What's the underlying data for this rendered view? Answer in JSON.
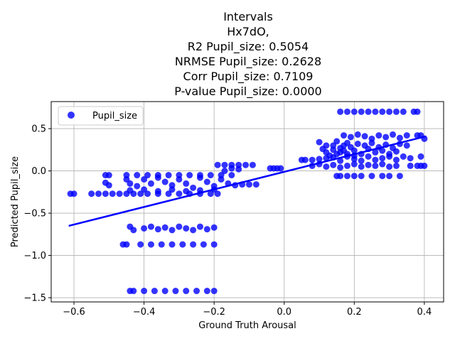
{
  "chart_data": {
    "type": "scatter",
    "title_lines": [
      "Intervals",
      "Hx7dO,",
      "R2 Pupil_size: 0.5054",
      "NRMSE Pupil_size: 0.2628",
      "Corr Pupil_size: 0.7109",
      "P-value Pupil_size: 0.0000"
    ],
    "xlabel": "Ground Truth Arousal",
    "ylabel": "Predicted Pupil_size",
    "xlim": [
      -0.665,
      0.455
    ],
    "ylim": [
      -1.55,
      0.82
    ],
    "xticks": [
      -0.6,
      -0.4,
      -0.2,
      0.0,
      0.2,
      0.4
    ],
    "xtick_labels": [
      "−0.6",
      "−0.4",
      "−0.2",
      "0.0",
      "0.2",
      "0.4"
    ],
    "yticks": [
      -1.5,
      -1.0,
      -0.5,
      0.0,
      0.5
    ],
    "ytick_labels": [
      "−1.5",
      "−1.0",
      "−0.5",
      "0.0",
      "0.5"
    ],
    "grid": true,
    "legend": {
      "position": "top-left",
      "entries": [
        "Pupil_size"
      ]
    },
    "color": "#0000ff",
    "series": [
      {
        "name": "Pupil_size",
        "points": [
          [
            -0.61,
            -0.27
          ],
          [
            -0.6,
            -0.27
          ],
          [
            -0.55,
            -0.27
          ],
          [
            -0.53,
            -0.27
          ],
          [
            -0.51,
            -0.27
          ],
          [
            -0.49,
            -0.27
          ],
          [
            -0.47,
            -0.27
          ],
          [
            -0.45,
            -0.27
          ],
          [
            -0.43,
            -0.27
          ],
          [
            -0.41,
            -0.27
          ],
          [
            -0.39,
            -0.27
          ],
          [
            -0.36,
            -0.27
          ],
          [
            -0.33,
            -0.27
          ],
          [
            -0.3,
            -0.27
          ],
          [
            -0.27,
            -0.27
          ],
          [
            -0.24,
            -0.27
          ],
          [
            -0.21,
            -0.27
          ],
          [
            -0.19,
            -0.27
          ],
          [
            -0.51,
            -0.05
          ],
          [
            -0.5,
            -0.05
          ],
          [
            -0.45,
            -0.05
          ],
          [
            -0.42,
            -0.05
          ],
          [
            -0.39,
            -0.05
          ],
          [
            -0.36,
            -0.05
          ],
          [
            -0.33,
            -0.05
          ],
          [
            -0.3,
            -0.05
          ],
          [
            -0.27,
            -0.05
          ],
          [
            -0.24,
            -0.05
          ],
          [
            -0.21,
            -0.05
          ],
          [
            -0.18,
            -0.05
          ],
          [
            -0.15,
            -0.05
          ],
          [
            -0.51,
            -0.14
          ],
          [
            -0.5,
            -0.17
          ],
          [
            -0.45,
            -0.1
          ],
          [
            -0.44,
            -0.15
          ],
          [
            -0.42,
            -0.18
          ],
          [
            -0.4,
            -0.1
          ],
          [
            -0.38,
            -0.15
          ],
          [
            -0.36,
            -0.08
          ],
          [
            -0.34,
            -0.13
          ],
          [
            -0.32,
            -0.17
          ],
          [
            -0.3,
            -0.1
          ],
          [
            -0.28,
            -0.15
          ],
          [
            -0.26,
            -0.2
          ],
          [
            -0.24,
            -0.08
          ],
          [
            -0.22,
            -0.13
          ],
          [
            -0.2,
            -0.18
          ],
          [
            -0.18,
            -0.1
          ],
          [
            -0.16,
            -0.15
          ],
          [
            -0.14,
            -0.17
          ],
          [
            -0.12,
            -0.16
          ],
          [
            -0.1,
            -0.16
          ],
          [
            -0.08,
            -0.16
          ],
          [
            -0.44,
            -0.23
          ],
          [
            -0.4,
            -0.22
          ],
          [
            -0.36,
            -0.24
          ],
          [
            -0.32,
            -0.22
          ],
          [
            -0.28,
            -0.24
          ],
          [
            -0.24,
            -0.23
          ],
          [
            -0.2,
            -0.22
          ],
          [
            -0.19,
            0.07
          ],
          [
            -0.17,
            0.07
          ],
          [
            -0.15,
            0.07
          ],
          [
            -0.13,
            0.07
          ],
          [
            -0.11,
            0.07
          ],
          [
            -0.09,
            0.07
          ],
          [
            -0.17,
            0.0
          ],
          [
            -0.15,
            0.03
          ],
          [
            -0.13,
            0.02
          ],
          [
            -0.04,
            0.03
          ],
          [
            -0.03,
            0.03
          ],
          [
            -0.02,
            0.03
          ],
          [
            -0.01,
            0.03
          ],
          [
            -0.44,
            -0.66
          ],
          [
            -0.43,
            -0.7
          ],
          [
            -0.4,
            -0.68
          ],
          [
            -0.38,
            -0.66
          ],
          [
            -0.36,
            -0.69
          ],
          [
            -0.34,
            -0.67
          ],
          [
            -0.32,
            -0.7
          ],
          [
            -0.3,
            -0.66
          ],
          [
            -0.28,
            -0.68
          ],
          [
            -0.26,
            -0.7
          ],
          [
            -0.24,
            -0.66
          ],
          [
            -0.22,
            -0.69
          ],
          [
            -0.2,
            -0.67
          ],
          [
            -0.46,
            -0.87
          ],
          [
            -0.45,
            -0.87
          ],
          [
            -0.41,
            -0.87
          ],
          [
            -0.38,
            -0.87
          ],
          [
            -0.35,
            -0.87
          ],
          [
            -0.32,
            -0.87
          ],
          [
            -0.29,
            -0.87
          ],
          [
            -0.26,
            -0.87
          ],
          [
            -0.23,
            -0.87
          ],
          [
            -0.2,
            -0.87
          ],
          [
            -0.44,
            -1.42
          ],
          [
            -0.43,
            -1.42
          ],
          [
            -0.4,
            -1.42
          ],
          [
            -0.37,
            -1.42
          ],
          [
            -0.34,
            -1.42
          ],
          [
            -0.31,
            -1.42
          ],
          [
            -0.28,
            -1.42
          ],
          [
            -0.25,
            -1.42
          ],
          [
            -0.22,
            -1.42
          ],
          [
            -0.2,
            -1.42
          ],
          [
            0.05,
            0.13
          ],
          [
            0.06,
            0.13
          ],
          [
            0.08,
            0.13
          ],
          [
            0.1,
            0.14
          ],
          [
            0.12,
            0.15
          ],
          [
            0.14,
            0.16
          ],
          [
            0.16,
            0.12
          ],
          [
            0.18,
            0.17
          ],
          [
            0.2,
            0.14
          ],
          [
            0.22,
            0.12
          ],
          [
            0.24,
            0.17
          ],
          [
            0.26,
            0.13
          ],
          [
            0.28,
            0.15
          ],
          [
            0.3,
            0.17
          ],
          [
            0.32,
            0.13
          ],
          [
            0.34,
            0.17
          ],
          [
            0.36,
            0.15
          ],
          [
            0.39,
            0.17
          ],
          [
            0.1,
            0.34
          ],
          [
            0.12,
            0.3
          ],
          [
            0.14,
            0.25
          ],
          [
            0.15,
            0.35
          ],
          [
            0.16,
            0.22
          ],
          [
            0.17,
            0.3
          ],
          [
            0.18,
            0.2
          ],
          [
            0.19,
            0.28
          ],
          [
            0.2,
            0.24
          ],
          [
            0.21,
            0.32
          ],
          [
            0.22,
            0.2
          ],
          [
            0.12,
            0.22
          ],
          [
            0.13,
            0.18
          ],
          [
            0.14,
            0.3
          ],
          [
            0.18,
            0.33
          ],
          [
            0.16,
            0.27
          ],
          [
            0.11,
            0.26
          ],
          [
            0.2,
            0.18
          ],
          [
            0.15,
            0.2
          ],
          [
            0.17,
            0.24
          ],
          [
            0.08,
            0.06
          ],
          [
            0.1,
            0.08
          ],
          [
            0.12,
            0.05
          ],
          [
            0.14,
            0.07
          ],
          [
            0.16,
            0.04
          ],
          [
            0.18,
            0.06
          ],
          [
            0.2,
            0.08
          ],
          [
            0.22,
            0.05
          ],
          [
            0.24,
            0.07
          ],
          [
            0.26,
            0.06
          ],
          [
            0.28,
            0.08
          ],
          [
            0.3,
            0.05
          ],
          [
            0.32,
            0.06
          ],
          [
            0.15,
            -0.06
          ],
          [
            0.16,
            -0.06
          ],
          [
            0.18,
            -0.06
          ],
          [
            0.2,
            -0.06
          ],
          [
            0.22,
            -0.06
          ],
          [
            0.25,
            -0.06
          ],
          [
            0.28,
            -0.06
          ],
          [
            0.3,
            -0.06
          ],
          [
            0.33,
            -0.06
          ],
          [
            0.16,
            0.7
          ],
          [
            0.18,
            0.7
          ],
          [
            0.2,
            0.7
          ],
          [
            0.22,
            0.7
          ],
          [
            0.24,
            0.7
          ],
          [
            0.26,
            0.7
          ],
          [
            0.28,
            0.7
          ],
          [
            0.3,
            0.7
          ],
          [
            0.32,
            0.7
          ],
          [
            0.34,
            0.7
          ],
          [
            0.37,
            0.7
          ],
          [
            0.38,
            0.7
          ],
          [
            0.17,
            0.42
          ],
          [
            0.19,
            0.4
          ],
          [
            0.21,
            0.43
          ],
          [
            0.23,
            0.41
          ],
          [
            0.25,
            0.38
          ],
          [
            0.27,
            0.42
          ],
          [
            0.29,
            0.4
          ],
          [
            0.31,
            0.43
          ],
          [
            0.33,
            0.39
          ],
          [
            0.35,
            0.42
          ],
          [
            0.38,
            0.42
          ],
          [
            0.39,
            0.42
          ],
          [
            0.4,
            0.38
          ],
          [
            0.23,
            0.3
          ],
          [
            0.25,
            0.33
          ],
          [
            0.27,
            0.28
          ],
          [
            0.29,
            0.31
          ],
          [
            0.31,
            0.27
          ],
          [
            0.33,
            0.32
          ],
          [
            0.26,
            0.22
          ],
          [
            0.28,
            0.24
          ],
          [
            0.3,
            0.2
          ],
          [
            0.24,
            0.26
          ],
          [
            0.32,
            0.23
          ],
          [
            0.35,
            0.3
          ],
          [
            0.36,
            0.06
          ],
          [
            0.38,
            0.06
          ],
          [
            0.39,
            0.06
          ],
          [
            0.4,
            0.06
          ]
        ]
      }
    ],
    "regression_line": {
      "x": [
        -0.615,
        0.405
      ],
      "y": [
        -0.65,
        0.41
      ]
    }
  }
}
